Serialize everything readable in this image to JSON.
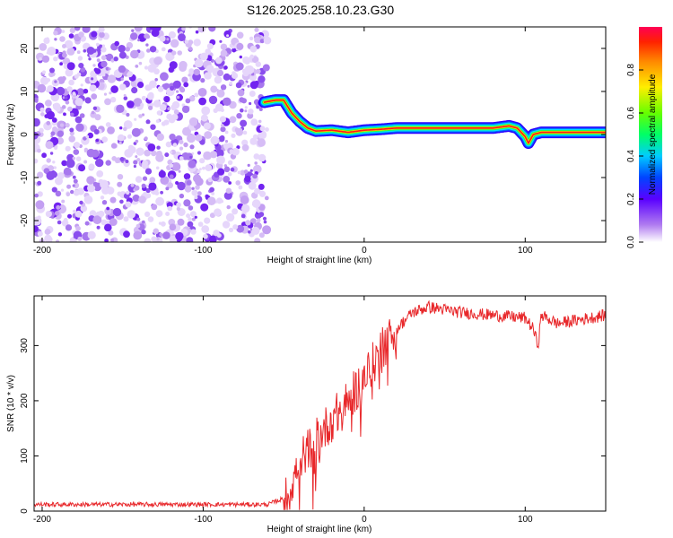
{
  "figure": {
    "title": "S126.2025.258.10.23.G30"
  },
  "chart_data": [
    {
      "type": "heatmap",
      "title": "",
      "xlabel": "Height of straight line (km)",
      "ylabel": "Frequency (Hz)",
      "xlim": [
        -205,
        150
      ],
      "ylim": [
        -25,
        25
      ],
      "x_ticks": [
        -200,
        -100,
        0,
        100
      ],
      "y_ticks": [
        -20,
        -10,
        0,
        10,
        20
      ],
      "noise_region_x": [
        -205,
        -60
      ],
      "ridge": {
        "x": [
          -62,
          -55,
          -50,
          -45,
          -40,
          -35,
          -30,
          -20,
          -10,
          0,
          10,
          20,
          40,
          60,
          80,
          90,
          95,
          100,
          102,
          105,
          110,
          120,
          130,
          150
        ],
        "hz": [
          7.5,
          8,
          8,
          5,
          3,
          1.5,
          0.8,
          1,
          0.5,
          1,
          1.2,
          1.5,
          1.5,
          1.5,
          1.5,
          2,
          1.5,
          -0.5,
          -2,
          0,
          0.5,
          0.5,
          0.5,
          0.5
        ]
      },
      "colorbar": {
        "label": "Normalized spectral amplitude",
        "range": [
          0,
          1
        ],
        "ticks": [
          "0.0",
          "0.2",
          "0.4",
          "0.6",
          "0.8"
        ]
      }
    },
    {
      "type": "line",
      "title": "",
      "xlabel": "Height of straight line (km)",
      "ylabel": "SNR (10 * v/v)",
      "xlim": [
        -205,
        150
      ],
      "ylim": [
        0,
        390
      ],
      "x_ticks": [
        -200,
        -100,
        0,
        100
      ],
      "y_ticks": [
        0,
        100,
        200,
        300
      ],
      "series": [
        {
          "name": "SNR",
          "color": "#e8282b",
          "trend": {
            "x": [
              -205,
              -60,
              -48,
              -40,
              -30,
              -20,
              -10,
              0,
              10,
              20,
              30,
              40,
              60,
              80,
              100,
              105,
              108,
              110,
              120,
              140,
              150
            ],
            "y": [
              12,
              12,
              25,
              90,
              130,
              165,
              200,
              240,
              290,
              330,
              360,
              370,
              360,
              355,
              350,
              330,
              300,
              355,
              340,
              350,
              355
            ]
          }
        }
      ]
    }
  ]
}
